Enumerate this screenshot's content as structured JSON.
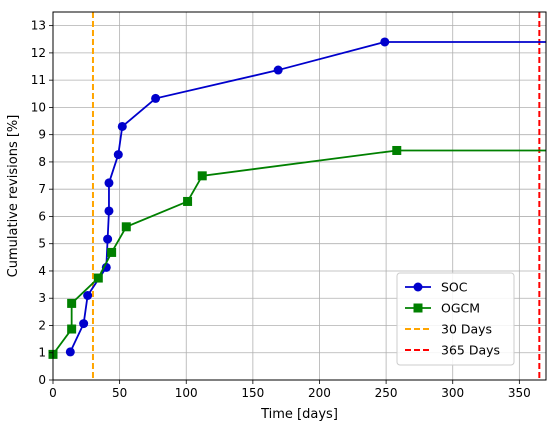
{
  "chart_data": {
    "type": "line",
    "title": "",
    "xlabel": "Time [days]",
    "ylabel": "Cumulative revisions [%]",
    "xlim": [
      0,
      370
    ],
    "ylim": [
      0,
      13.5
    ],
    "xticks": [
      0,
      50,
      100,
      150,
      200,
      250,
      300,
      350
    ],
    "yticks": [
      0,
      1,
      2,
      3,
      4,
      5,
      6,
      7,
      8,
      9,
      10,
      11,
      12,
      13
    ],
    "grid": true,
    "legend_position": "bottom-right",
    "series": [
      {
        "name": "SOC",
        "color": "#0000cc",
        "marker": "circle",
        "x": [
          13,
          23,
          26,
          40,
          41,
          42,
          42,
          49,
          52,
          77,
          169,
          249,
          370
        ],
        "y": [
          1.03,
          2.07,
          3.1,
          4.13,
          5.17,
          6.2,
          7.23,
          8.27,
          9.3,
          10.33,
          11.37,
          12.4,
          12.4
        ],
        "marked": [
          true,
          true,
          true,
          true,
          true,
          true,
          true,
          true,
          true,
          true,
          true,
          true,
          false
        ]
      },
      {
        "name": "OGCM",
        "color": "#008000",
        "marker": "square",
        "x": [
          0,
          14,
          14,
          34,
          44,
          55,
          101,
          112,
          258,
          370
        ],
        "y": [
          0.94,
          1.87,
          2.81,
          3.74,
          4.68,
          5.62,
          6.55,
          7.49,
          8.42,
          8.42
        ],
        "marked": [
          true,
          true,
          true,
          true,
          true,
          true,
          true,
          true,
          true,
          false
        ]
      }
    ],
    "vlines": [
      {
        "name": "30 Days",
        "x": 30,
        "color": "#ffa500"
      },
      {
        "name": "365 Days",
        "x": 365,
        "color": "#ff0000"
      }
    ]
  }
}
